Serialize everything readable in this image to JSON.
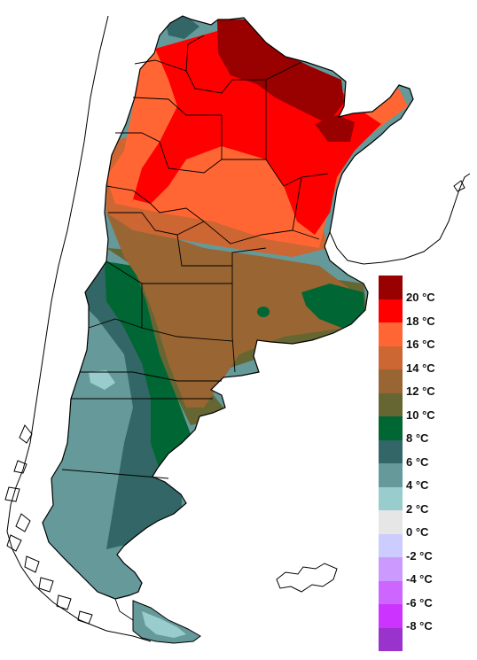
{
  "legend": {
    "items": [
      {
        "label": "20 °C",
        "color": "#990000"
      },
      {
        "label": "18 °C",
        "color": "#ff0000"
      },
      {
        "label": "16 °C",
        "color": "#ff6633"
      },
      {
        "label": "14 °C",
        "color": "#cc6633"
      },
      {
        "label": "12 °C",
        "color": "#996633"
      },
      {
        "label": "10 °C",
        "color": "#666633"
      },
      {
        "label": "8 °C",
        "color": "#006633"
      },
      {
        "label": "6 °C",
        "color": "#336666"
      },
      {
        "label": "4 °C",
        "color": "#669999"
      },
      {
        "label": "2 °C",
        "color": "#99cccc"
      },
      {
        "label": "0 °C",
        "color": "#e6e6e6"
      },
      {
        "label": "-2 °C",
        "color": "#ccccff"
      },
      {
        "label": "-4 °C",
        "color": "#cc99ff"
      },
      {
        "label": "-6 °C",
        "color": "#cc66ff"
      },
      {
        "label": "-8 °C",
        "color": "#cc33ff"
      },
      {
        "label": "",
        "color": "#9933cc"
      }
    ]
  }
}
